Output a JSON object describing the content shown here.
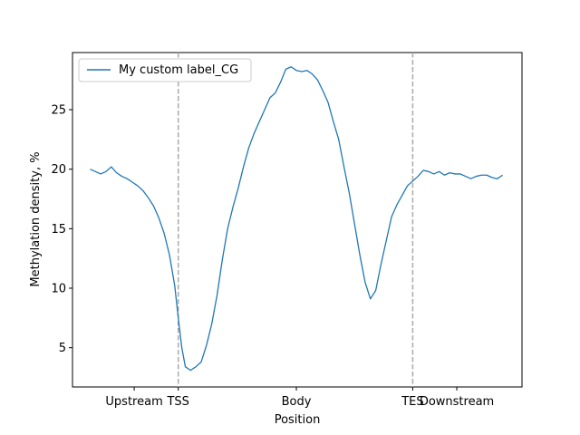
{
  "chart_data": {
    "type": "line",
    "title": "",
    "xlabel": "Position",
    "ylabel": "Methylation density, %",
    "xlim": [
      -10,
      245
    ],
    "ylim": [
      1.7,
      29.8
    ],
    "y_ticks": [
      5,
      10,
      15,
      20,
      25
    ],
    "x_ticks": [
      {
        "value": 25,
        "label": "Upstream"
      },
      {
        "value": 50,
        "label": "TSS"
      },
      {
        "value": 117,
        "label": "Body"
      },
      {
        "value": 183,
        "label": "TES"
      },
      {
        "value": 208,
        "label": "Downstream"
      }
    ],
    "vlines": [
      {
        "x": 50,
        "style": "dashed",
        "color": "#aaaaaa"
      }
    ],
    "vlines_extra": [
      {
        "x": 183,
        "style": "dashed",
        "color": "#aaaaaa"
      }
    ],
    "legend": {
      "position": "top-left"
    },
    "series": [
      {
        "name": "My custom label_CG",
        "color": "#1f77b4",
        "x": [
          0,
          3,
          6,
          9,
          12,
          15,
          18,
          21,
          24,
          27,
          30,
          33,
          36,
          39,
          42,
          45,
          48,
          50,
          52,
          54,
          57,
          60,
          63,
          66,
          69,
          72,
          75,
          78,
          81,
          84,
          87,
          90,
          93,
          96,
          99,
          102,
          105,
          108,
          111,
          114,
          117,
          120,
          123,
          126,
          129,
          132,
          135,
          138,
          141,
          144,
          147,
          150,
          153,
          156,
          159,
          162,
          165,
          168,
          171,
          174,
          177,
          180,
          183,
          186,
          189,
          192,
          195,
          198,
          201,
          204,
          207,
          210,
          213,
          216,
          219,
          222,
          225,
          228,
          231,
          234
        ],
        "y": [
          20.0,
          19.8,
          19.6,
          19.8,
          20.2,
          19.7,
          19.4,
          19.2,
          18.9,
          18.6,
          18.2,
          17.6,
          16.9,
          15.9,
          14.6,
          12.8,
          10.2,
          7.5,
          5.0,
          3.4,
          3.1,
          3.4,
          3.8,
          5.2,
          7.0,
          9.4,
          12.4,
          15.0,
          16.8,
          18.4,
          20.2,
          21.8,
          23.0,
          24.0,
          25.0,
          26.0,
          26.4,
          27.3,
          28.4,
          28.6,
          28.3,
          28.2,
          28.3,
          28.0,
          27.5,
          26.6,
          25.6,
          24.0,
          22.5,
          20.2,
          18.0,
          15.4,
          12.8,
          10.5,
          9.1,
          9.8,
          12.0,
          14.0,
          16.0,
          17.0,
          17.8,
          18.6,
          19.0,
          19.4,
          19.9,
          19.8,
          19.6,
          19.8,
          19.5,
          19.7,
          19.6,
          19.6,
          19.4,
          19.2,
          19.4,
          19.5,
          19.5,
          19.3,
          19.2,
          19.5
        ]
      }
    ]
  }
}
